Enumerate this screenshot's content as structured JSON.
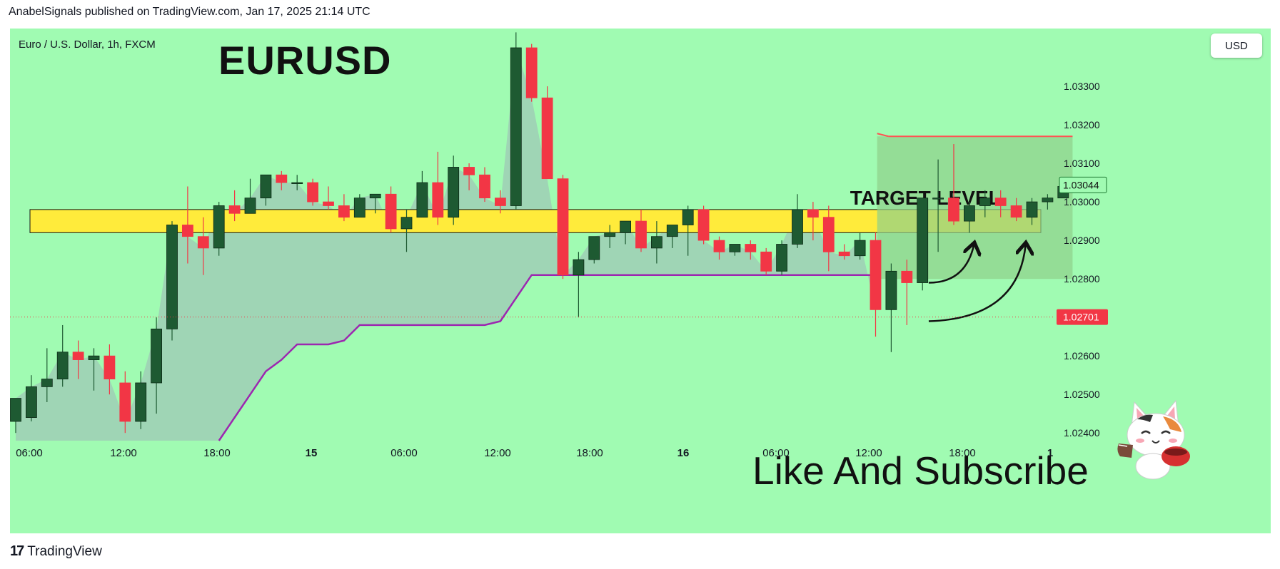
{
  "publisher_line": "AnabelSignals published on TradingView.com, Jan 17, 2025 21:14 UTC",
  "symbol_info": "Euro / U.S. Dollar, 1h, FXCM",
  "pair_title": "EURUSD",
  "currency_button": "USD",
  "target_label": "TARGET LEVEL",
  "cta_text": "Like And Subscribe",
  "brand": "TradingView",
  "colors": {
    "background": "#a0fbb2",
    "bull_candle": "#1e5a32",
    "bear_candle": "#f23645",
    "zone": "#ffeb3b",
    "trail_line": "#9c27b0",
    "target_line": "#ff5252"
  },
  "chart_data": {
    "type": "candlestick",
    "ylim": [
      1.0238,
      1.0345
    ],
    "y_ticks": [
      "1.03300",
      "1.03200",
      "1.03100",
      "1.03000",
      "1.02900",
      "1.02800",
      "1.02600",
      "1.02500",
      "1.02400"
    ],
    "x_ticks": [
      "06:00",
      "12:00",
      "18:00",
      "15",
      "06:00",
      "12:00",
      "18:00",
      "16",
      "06:00",
      "12:00",
      "18:00",
      "1"
    ],
    "current_price": "1.03044",
    "marker_price": "1.02701",
    "zone": {
      "low": 1.0292,
      "high": 1.0298
    },
    "target_level": 1.0317,
    "candles": [
      {
        "o": 1.0243,
        "h": 1.0249,
        "l": 1.024,
        "c": 1.0249
      },
      {
        "o": 1.0244,
        "h": 1.0255,
        "l": 1.0243,
        "c": 1.0252
      },
      {
        "o": 1.0252,
        "h": 1.0262,
        "l": 1.0248,
        "c": 1.0254
      },
      {
        "o": 1.0254,
        "h": 1.0268,
        "l": 1.0252,
        "c": 1.0261
      },
      {
        "o": 1.0261,
        "h": 1.0264,
        "l": 1.0254,
        "c": 1.0259
      },
      {
        "o": 1.0259,
        "h": 1.0262,
        "l": 1.0251,
        "c": 1.026
      },
      {
        "o": 1.026,
        "h": 1.0263,
        "l": 1.025,
        "c": 1.0254
      },
      {
        "o": 1.0253,
        "h": 1.0256,
        "l": 1.024,
        "c": 1.0243
      },
      {
        "o": 1.0243,
        "h": 1.0256,
        "l": 1.0241,
        "c": 1.0253
      },
      {
        "o": 1.0253,
        "h": 1.027,
        "l": 1.0245,
        "c": 1.0267
      },
      {
        "o": 1.0267,
        "h": 1.0295,
        "l": 1.0264,
        "c": 1.0294
      },
      {
        "o": 1.0294,
        "h": 1.0304,
        "l": 1.0284,
        "c": 1.0291
      },
      {
        "o": 1.0291,
        "h": 1.0296,
        "l": 1.0281,
        "c": 1.0288
      },
      {
        "o": 1.0288,
        "h": 1.03,
        "l": 1.0286,
        "c": 1.0299
      },
      {
        "o": 1.0299,
        "h": 1.0303,
        "l": 1.0295,
        "c": 1.0297
      },
      {
        "o": 1.0297,
        "h": 1.0306,
        "l": 1.0297,
        "c": 1.0301
      },
      {
        "o": 1.0301,
        "h": 1.0307,
        "l": 1.0299,
        "c": 1.0307
      },
      {
        "o": 1.0307,
        "h": 1.0308,
        "l": 1.0303,
        "c": 1.0305
      },
      {
        "o": 1.0305,
        "h": 1.0307,
        "l": 1.0303,
        "c": 1.0305
      },
      {
        "o": 1.0305,
        "h": 1.0306,
        "l": 1.0299,
        "c": 1.03
      },
      {
        "o": 1.03,
        "h": 1.0304,
        "l": 1.0298,
        "c": 1.0299
      },
      {
        "o": 1.0299,
        "h": 1.0302,
        "l": 1.0295,
        "c": 1.0296
      },
      {
        "o": 1.0296,
        "h": 1.0302,
        "l": 1.0296,
        "c": 1.0301
      },
      {
        "o": 1.0301,
        "h": 1.0302,
        "l": 1.0297,
        "c": 1.0302
      },
      {
        "o": 1.0302,
        "h": 1.0304,
        "l": 1.0292,
        "c": 1.0293
      },
      {
        "o": 1.0293,
        "h": 1.0298,
        "l": 1.0287,
        "c": 1.0296
      },
      {
        "o": 1.0296,
        "h": 1.0308,
        "l": 1.0296,
        "c": 1.0305
      },
      {
        "o": 1.0305,
        "h": 1.0313,
        "l": 1.0294,
        "c": 1.0296
      },
      {
        "o": 1.0296,
        "h": 1.0312,
        "l": 1.0294,
        "c": 1.0309
      },
      {
        "o": 1.0309,
        "h": 1.031,
        "l": 1.0303,
        "c": 1.0307
      },
      {
        "o": 1.0307,
        "h": 1.0309,
        "l": 1.03,
        "c": 1.0301
      },
      {
        "o": 1.0301,
        "h": 1.0303,
        "l": 1.0297,
        "c": 1.0299
      },
      {
        "o": 1.0299,
        "h": 1.0344,
        "l": 1.0298,
        "c": 1.034
      },
      {
        "o": 1.034,
        "h": 1.0341,
        "l": 1.0326,
        "c": 1.0327
      },
      {
        "o": 1.0327,
        "h": 1.033,
        "l": 1.0307,
        "c": 1.0306
      },
      {
        "o": 1.0306,
        "h": 1.0307,
        "l": 1.028,
        "c": 1.0281
      },
      {
        "o": 1.0281,
        "h": 1.0287,
        "l": 1.027,
        "c": 1.0285
      },
      {
        "o": 1.0285,
        "h": 1.0291,
        "l": 1.0284,
        "c": 1.0291
      },
      {
        "o": 1.0291,
        "h": 1.0294,
        "l": 1.0288,
        "c": 1.0292
      },
      {
        "o": 1.0292,
        "h": 1.0295,
        "l": 1.0289,
        "c": 1.0295
      },
      {
        "o": 1.0295,
        "h": 1.0298,
        "l": 1.0287,
        "c": 1.0288
      },
      {
        "o": 1.0288,
        "h": 1.0295,
        "l": 1.0284,
        "c": 1.0291
      },
      {
        "o": 1.0291,
        "h": 1.0294,
        "l": 1.0288,
        "c": 1.0294
      },
      {
        "o": 1.0294,
        "h": 1.0299,
        "l": 1.0286,
        "c": 1.0298
      },
      {
        "o": 1.0298,
        "h": 1.0299,
        "l": 1.0289,
        "c": 1.029
      },
      {
        "o": 1.029,
        "h": 1.0291,
        "l": 1.0285,
        "c": 1.0287
      },
      {
        "o": 1.0287,
        "h": 1.0289,
        "l": 1.0286,
        "c": 1.0289
      },
      {
        "o": 1.0289,
        "h": 1.029,
        "l": 1.0285,
        "c": 1.0287
      },
      {
        "o": 1.0287,
        "h": 1.0288,
        "l": 1.0281,
        "c": 1.0282
      },
      {
        "o": 1.0282,
        "h": 1.029,
        "l": 1.0281,
        "c": 1.0289
      },
      {
        "o": 1.0289,
        "h": 1.0302,
        "l": 1.0288,
        "c": 1.0298
      },
      {
        "o": 1.0298,
        "h": 1.03,
        "l": 1.029,
        "c": 1.0296
      },
      {
        "o": 1.0296,
        "h": 1.0299,
        "l": 1.0282,
        "c": 1.0287
      },
      {
        "o": 1.0287,
        "h": 1.0289,
        "l": 1.0285,
        "c": 1.0286
      },
      {
        "o": 1.0286,
        "h": 1.0292,
        "l": 1.0285,
        "c": 1.029
      },
      {
        "o": 1.029,
        "h": 1.0292,
        "l": 1.0265,
        "c": 1.0272
      },
      {
        "o": 1.0272,
        "h": 1.0284,
        "l": 1.0261,
        "c": 1.0282
      },
      {
        "o": 1.0282,
        "h": 1.0285,
        "l": 1.0268,
        "c": 1.0279
      },
      {
        "o": 1.0279,
        "h": 1.03,
        "l": 1.0277,
        "c": 1.0301
      },
      {
        "o": 1.0301,
        "h": 1.0311,
        "l": 1.0287,
        "c": 1.0301
      },
      {
        "o": 1.0301,
        "h": 1.0315,
        "l": 1.0294,
        "c": 1.0295
      },
      {
        "o": 1.0295,
        "h": 1.03,
        "l": 1.0292,
        "c": 1.0299
      },
      {
        "o": 1.0299,
        "h": 1.0303,
        "l": 1.0296,
        "c": 1.0301
      },
      {
        "o": 1.0301,
        "h": 1.0303,
        "l": 1.0296,
        "c": 1.0299
      },
      {
        "o": 1.0299,
        "h": 1.0301,
        "l": 1.0295,
        "c": 1.0296
      },
      {
        "o": 1.0296,
        "h": 1.0301,
        "l": 1.0294,
        "c": 1.03
      },
      {
        "o": 1.03,
        "h": 1.0302,
        "l": 1.0298,
        "c": 1.0301
      },
      {
        "o": 1.0301,
        "h": 1.0305,
        "l": 1.0301,
        "c": 1.0304
      }
    ],
    "trail_line": [
      {
        "i": 13,
        "v": 1.0238
      },
      {
        "i": 15,
        "v": 1.025
      },
      {
        "i": 16,
        "v": 1.0256
      },
      {
        "i": 17,
        "v": 1.0259
      },
      {
        "i": 18,
        "v": 1.0263
      },
      {
        "i": 19,
        "v": 1.0263
      },
      {
        "i": 20,
        "v": 1.0263
      },
      {
        "i": 21,
        "v": 1.0264
      },
      {
        "i": 22,
        "v": 1.0268
      },
      {
        "i": 30,
        "v": 1.0268
      },
      {
        "i": 31,
        "v": 1.0269
      },
      {
        "i": 33,
        "v": 1.0281
      },
      {
        "i": 55,
        "v": 1.0281
      }
    ]
  }
}
